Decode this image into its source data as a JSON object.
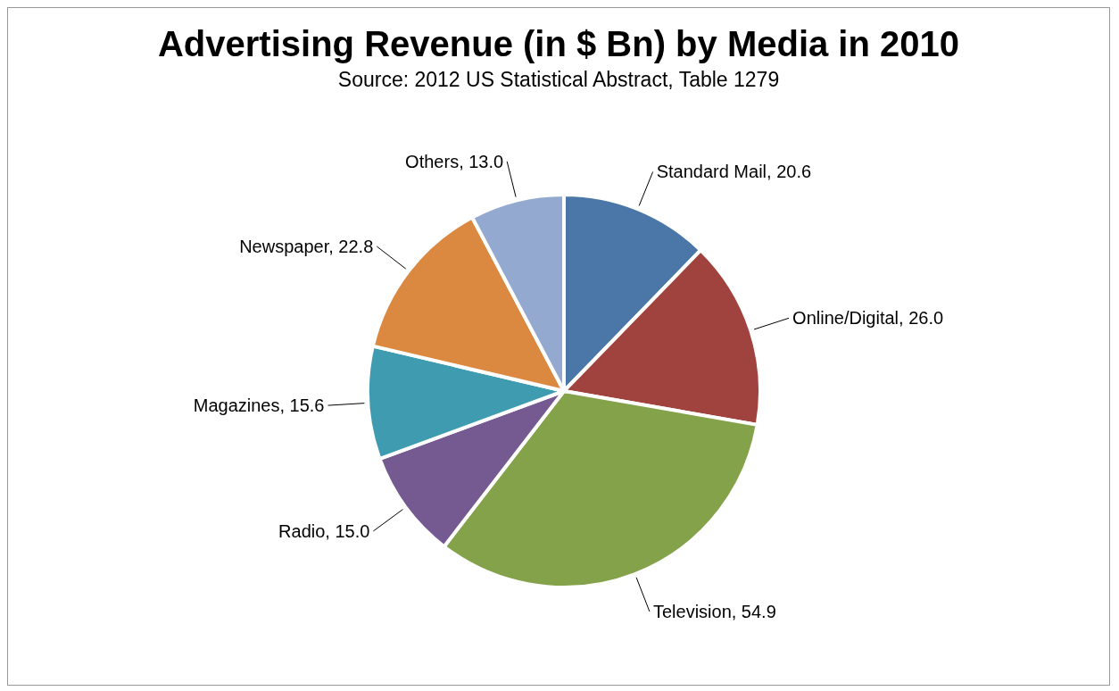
{
  "chart_data": {
    "type": "pie",
    "title": "Advertising Revenue (in $ Bn) by Media in 2010",
    "subtitle": "Source: 2012 US Statistical Abstract, Table 1279",
    "categories": [
      "Standard Mail",
      "Online/Digital",
      "Television",
      "Radio",
      "Magazines",
      "Newspaper",
      "Others"
    ],
    "values": [
      20.6,
      26.0,
      54.9,
      15.0,
      15.6,
      22.8,
      13.0
    ],
    "value_labels": [
      "20.6",
      "26.0",
      "54.9",
      "15.0",
      "15.6",
      "22.8",
      "13.0"
    ],
    "colors": [
      "#4a76a8",
      "#a0433f",
      "#84a24a",
      "#745a91",
      "#3f9bb0",
      "#db8841",
      "#93a9cf"
    ],
    "legend": false
  }
}
